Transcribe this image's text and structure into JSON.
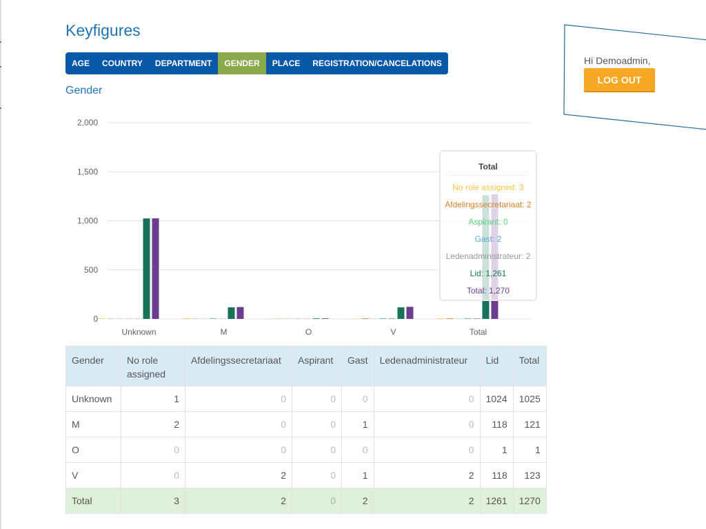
{
  "header": {
    "title": "Keyfigures"
  },
  "tabs": [
    {
      "label": "AGE",
      "active": false
    },
    {
      "label": "COUNTRY",
      "active": false
    },
    {
      "label": "DEPARTMENT",
      "active": false
    },
    {
      "label": "GENDER",
      "active": true
    },
    {
      "label": "PLACE",
      "active": false
    },
    {
      "label": "REGISTRATION/CANCELATIONS",
      "active": false
    }
  ],
  "section": {
    "title": "Gender"
  },
  "user": {
    "greeting": "Hi Demoadmin,",
    "logout_label": "LOG OUT"
  },
  "chart_data": {
    "type": "bar",
    "categories": [
      "Unknown",
      "M",
      "O",
      "V",
      "Total"
    ],
    "series": [
      {
        "name": "No role assigned",
        "color": "#f5c542",
        "values": [
          1,
          2,
          0,
          0,
          3
        ]
      },
      {
        "name": "Afdelingssecretariaat",
        "color": "#d9822b",
        "values": [
          0,
          0,
          0,
          2,
          2
        ]
      },
      {
        "name": "Aspirant",
        "color": "#5cd07a",
        "values": [
          0,
          0,
          0,
          0,
          0
        ]
      },
      {
        "name": "Gast",
        "color": "#5ba3d9",
        "values": [
          0,
          1,
          0,
          1,
          2
        ]
      },
      {
        "name": "Ledenadministrateur",
        "color": "#999999",
        "values": [
          0,
          0,
          0,
          2,
          2
        ]
      },
      {
        "name": "Lid",
        "color": "#167259",
        "values": [
          1024,
          118,
          1,
          118,
          1261
        ]
      },
      {
        "name": "Total",
        "color": "#6a3d8f",
        "values": [
          1025,
          121,
          1,
          123,
          1270
        ]
      }
    ],
    "yticks": [
      "2,000",
      "1,500",
      "1,000",
      "500",
      "0"
    ],
    "ylim": [
      0,
      2000
    ],
    "grid": true,
    "tooltip": {
      "title": "Total",
      "rows": [
        "No role assigned: 3",
        "Afdelingssecretariaat: 2",
        "Aspirant: 0",
        "Gast: 2",
        "Ledenadministrateur: 2",
        "Lid: 1,261",
        "Total: 1,270"
      ]
    }
  },
  "table": {
    "headers": [
      "Gender",
      "No role assigned",
      "Afdelingssecretariaat",
      "Aspirant",
      "Gast",
      "Ledenadministrateur",
      "Lid",
      "Total"
    ],
    "rows": [
      [
        "Unknown",
        "1",
        "0",
        "0",
        "0",
        "0",
        "1024",
        "1025"
      ],
      [
        "M",
        "2",
        "0",
        "0",
        "1",
        "0",
        "118",
        "121"
      ],
      [
        "O",
        "0",
        "0",
        "0",
        "0",
        "0",
        "1",
        "1"
      ],
      [
        "V",
        "0",
        "2",
        "0",
        "1",
        "2",
        "118",
        "123"
      ]
    ],
    "total_row": [
      "Total",
      "3",
      "2",
      "0",
      "2",
      "2",
      "1261",
      "1270"
    ]
  }
}
